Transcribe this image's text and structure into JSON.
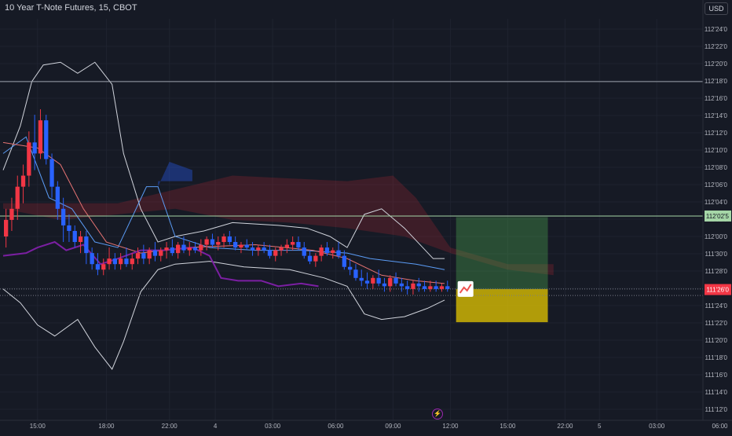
{
  "symbol": {
    "title": "10 Year T-Note Futures, 15, CBOT",
    "currency": "USD"
  },
  "chart_data": {
    "type": "candlestick",
    "price_axis_ticks": [
      "112'24'0",
      "112'22'0",
      "112'20'0",
      "112'18'0",
      "112'16'0",
      "112'14'0",
      "112'12'0",
      "112'10'0",
      "112'08'0",
      "112'06'0",
      "112'04'0",
      "112'02'0",
      "112'00'0",
      "111'30'0",
      "111'28'0",
      "111'26'0",
      "111'24'0",
      "111'22'0",
      "111'20'0",
      "111'18'0",
      "111'16'0",
      "111'14'0",
      "111'12'0"
    ],
    "price_axis_values": [
      112.75,
      112.6875,
      112.625,
      112.5625,
      112.5,
      112.4375,
      112.375,
      112.3125,
      112.25,
      112.1875,
      112.125,
      112.0625,
      112.0,
      111.9375,
      111.875,
      111.8125,
      111.75,
      111.6875,
      111.625,
      111.5625,
      111.5,
      111.4375,
      111.375
    ],
    "time_axis_labels": [
      {
        "label": "15:00",
        "bar": 6
      },
      {
        "label": "18:00",
        "bar": 18
      },
      {
        "label": "22:00",
        "bar": 29
      },
      {
        "label": "4",
        "bar": 37
      },
      {
        "label": "03:00",
        "bar": 47
      },
      {
        "label": "06:00",
        "bar": 58
      },
      {
        "label": "09:00",
        "bar": 68
      },
      {
        "label": "12:00",
        "bar": 78
      },
      {
        "label": "15:00",
        "bar": 88
      },
      {
        "label": "22:00",
        "bar": 98
      },
      {
        "label": "5",
        "bar": 104
      },
      {
        "label": "03:00",
        "bar": 114
      },
      {
        "label": "06:00",
        "bar": 125
      }
    ],
    "bars_visible": 128,
    "candles": [
      [
        112.0,
        112.1,
        111.96,
        112.06
      ],
      [
        112.06,
        112.14,
        112.02,
        112.1
      ],
      [
        112.1,
        112.22,
        112.06,
        112.18
      ],
      [
        112.18,
        112.26,
        112.12,
        112.22
      ],
      [
        112.22,
        112.38,
        112.18,
        112.34
      ],
      [
        112.34,
        112.44,
        112.24,
        112.3
      ],
      [
        112.3,
        112.46,
        112.28,
        112.42
      ],
      [
        112.42,
        112.44,
        112.26,
        112.28
      ],
      [
        112.28,
        112.3,
        112.14,
        112.18
      ],
      [
        112.18,
        112.2,
        112.06,
        112.1
      ],
      [
        112.1,
        112.14,
        111.98,
        112.04
      ],
      [
        112.04,
        112.08,
        111.98,
        112.02
      ],
      [
        112.02,
        112.04,
        111.96,
        111.98
      ],
      [
        111.98,
        112.02,
        111.94,
        112.0
      ],
      [
        112.0,
        112.02,
        111.9,
        111.94
      ],
      [
        111.94,
        111.96,
        111.88,
        111.9
      ],
      [
        111.9,
        111.94,
        111.86,
        111.88
      ],
      [
        111.88,
        111.92,
        111.86,
        111.9
      ],
      [
        111.9,
        111.96,
        111.88,
        111.92
      ],
      [
        111.92,
        111.94,
        111.88,
        111.9
      ],
      [
        111.9,
        111.94,
        111.88,
        111.92
      ],
      [
        111.92,
        111.96,
        111.89,
        111.9
      ],
      [
        111.9,
        111.94,
        111.88,
        111.92
      ],
      [
        111.92,
        111.96,
        111.9,
        111.94
      ],
      [
        111.94,
        111.97,
        111.9,
        111.92
      ],
      [
        111.92,
        111.96,
        111.9,
        111.95
      ],
      [
        111.95,
        111.98,
        111.91,
        111.93
      ],
      [
        111.93,
        111.96,
        111.91,
        111.95
      ],
      [
        111.95,
        111.98,
        111.92,
        111.96
      ],
      [
        111.96,
        111.99,
        111.93,
        111.94
      ],
      [
        111.94,
        111.98,
        111.92,
        111.97
      ],
      [
        111.97,
        112.0,
        111.94,
        111.95
      ],
      [
        111.95,
        111.98,
        111.93,
        111.96
      ],
      [
        111.96,
        111.98,
        111.94,
        111.95
      ],
      [
        111.95,
        111.99,
        111.93,
        111.97
      ],
      [
        111.97,
        112.0,
        111.95,
        111.99
      ],
      [
        111.99,
        112.01,
        111.96,
        111.97
      ],
      [
        111.97,
        112.0,
        111.95,
        111.98
      ],
      [
        111.98,
        112.01,
        111.96,
        112.0
      ],
      [
        112.0,
        112.02,
        111.97,
        111.98
      ],
      [
        111.98,
        112.0,
        111.95,
        111.96
      ],
      [
        111.96,
        111.98,
        111.94,
        111.97
      ],
      [
        111.97,
        111.99,
        111.95,
        111.96
      ],
      [
        111.96,
        111.98,
        111.93,
        111.95
      ],
      [
        111.95,
        111.97,
        111.93,
        111.96
      ],
      [
        111.96,
        111.98,
        111.94,
        111.95
      ],
      [
        111.95,
        111.97,
        111.92,
        111.93
      ],
      [
        111.93,
        111.96,
        111.91,
        111.95
      ],
      [
        111.95,
        111.97,
        111.93,
        111.96
      ],
      [
        111.96,
        111.99,
        111.94,
        111.97
      ],
      [
        111.97,
        112.0,
        111.95,
        111.98
      ],
      [
        111.98,
        112.0,
        111.95,
        111.96
      ],
      [
        111.96,
        111.98,
        111.92,
        111.93
      ],
      [
        111.93,
        111.95,
        111.9,
        111.91
      ],
      [
        111.91,
        111.94,
        111.89,
        111.93
      ],
      [
        111.93,
        111.97,
        111.91,
        111.96
      ],
      [
        111.96,
        111.98,
        111.93,
        111.94
      ],
      [
        111.94,
        111.96,
        111.92,
        111.95
      ],
      [
        111.95,
        111.98,
        111.92,
        111.93
      ],
      [
        111.93,
        111.95,
        111.88,
        111.89
      ],
      [
        111.89,
        111.92,
        111.86,
        111.88
      ],
      [
        111.88,
        111.9,
        111.84,
        111.85
      ],
      [
        111.85,
        111.88,
        111.82,
        111.84
      ],
      [
        111.84,
        111.87,
        111.81,
        111.83
      ],
      [
        111.83,
        111.86,
        111.81,
        111.85
      ],
      [
        111.85,
        111.88,
        111.82,
        111.83
      ],
      [
        111.83,
        111.85,
        111.8,
        111.82
      ],
      [
        111.82,
        111.86,
        111.8,
        111.85
      ],
      [
        111.85,
        111.87,
        111.82,
        111.83
      ],
      [
        111.83,
        111.85,
        111.8,
        111.82
      ],
      [
        111.82,
        111.84,
        111.79,
        111.81
      ],
      [
        111.81,
        111.84,
        111.79,
        111.83
      ],
      [
        111.83,
        111.85,
        111.8,
        111.82
      ],
      [
        111.82,
        111.84,
        111.8,
        111.81
      ],
      [
        111.81,
        111.84,
        111.8,
        111.82
      ],
      [
        111.82,
        111.84,
        111.8,
        111.81
      ],
      [
        111.81,
        111.83,
        111.8,
        111.82
      ],
      [
        111.82,
        111.84,
        111.8,
        111.81
      ]
    ],
    "last_price_label": "111'26'0",
    "target_price_label": "112'02'5",
    "levels": [
      {
        "name": "resistance-line",
        "price": 112.56,
        "color": "#9aa0aa"
      },
      {
        "name": "target-line",
        "price": 112.074,
        "color": "#a5d6a7"
      }
    ],
    "position": {
      "entry": 111.81,
      "target": 112.07,
      "stop": 111.69,
      "start_bar": 79,
      "end_bar": 95,
      "profit_color": "rgba(76,175,80,0.35)",
      "loss_color": "rgba(230,200,0,0.75)"
    },
    "colors": {
      "up": "#26a69a",
      "down": "#ef5350",
      "bull_candle": "#f23645",
      "bear_candle": "#2962ff",
      "grid": "#1f2330",
      "axis_text": "#b2b5be",
      "band": "#d1d4dc",
      "cloud": "rgba(178,40,51,0.25)",
      "cloud_blue": "rgba(41,98,255,0.35)",
      "lagging": "#7b1fa2",
      "conversion": "#5b9cf6",
      "base": "#e57373"
    }
  },
  "icons": {
    "alert": "lightning-icon"
  },
  "alert_glyph": "⚡"
}
